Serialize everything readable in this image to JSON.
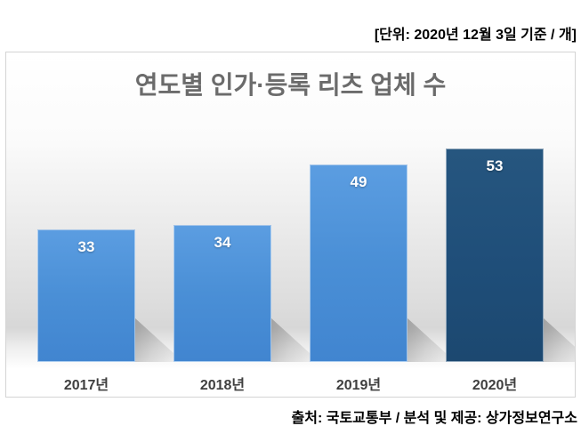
{
  "page": {
    "unit_note": "[단위: 2020년 12월 3일 기준 / 개]",
    "source_note": "출처: 국토교통부 / 분석 및 제공: 상가정보연구소"
  },
  "chart_data": {
    "type": "bar",
    "title": "연도별 인가·등록 리츠 업체 수",
    "categories": [
      "2017년",
      "2018년",
      "2019년",
      "2020년"
    ],
    "values": [
      33,
      34,
      49,
      53
    ],
    "highlight_index": 3,
    "xlabel": "",
    "ylabel": "",
    "ylim": [
      0,
      53
    ],
    "grid": false,
    "legend": false,
    "value_label_position": "inside-top",
    "colors": {
      "bar_default": "#4a8fd6",
      "bar_highlight": "#1f4e79",
      "title_text": "#6b6b6b",
      "axis_label_text": "#3f3f3f",
      "value_label_text": "#ffffff",
      "note_text": "#000000",
      "chart_border": "#d4d4d4"
    }
  }
}
